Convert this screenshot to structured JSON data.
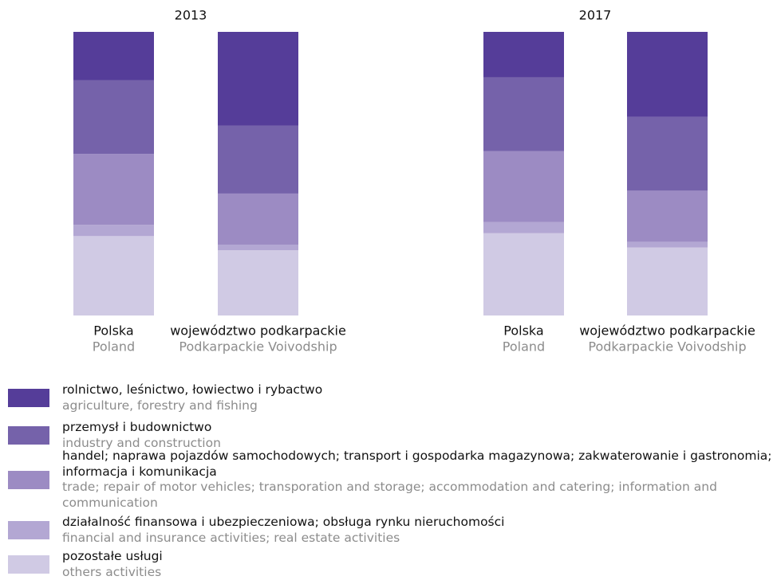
{
  "chart_data": {
    "type": "bar",
    "stacked": true,
    "ylim": [
      0,
      100
    ],
    "groups": [
      "2013",
      "2017"
    ],
    "categories": [
      [
        "Polska",
        "Poland"
      ],
      [
        "województwo podkarpackie",
        "Podkarpackie Voivodship"
      ],
      [
        "Polska",
        "Poland"
      ],
      [
        "województwo podkarpackie",
        "Podkarpackie Voivodship"
      ]
    ],
    "series": [
      {
        "name": "rolnictwo, leśnictwo, łowiectwo i rybactwo",
        "name_en": "agriculture, forestry and fishing",
        "color": "#553d99",
        "values": [
          17,
          33,
          16,
          30
        ]
      },
      {
        "name": "przemysł i budownictwo",
        "name_en": "industry and construction",
        "color": "#7562aa",
        "values": [
          26,
          24,
          26,
          26
        ]
      },
      {
        "name": "handel; naprawa pojazdów samochodowych; transport i gospodarka magazynowa; zakwaterowanie i gastronomia; informacja i komunikacja",
        "name_en": "trade; repair of motor vehicles; transporation and storage; accommodation and catering; information and communication",
        "color": "#9c8bc3",
        "values": [
          25,
          18,
          25,
          18
        ]
      },
      {
        "name": "działalność finansowa i ubezpieczeniowa; obsługa rynku nieruchomości",
        "name_en": "financial and insurance activities; real estate activities",
        "color": "#b3a7d3",
        "values": [
          4,
          2,
          4,
          2
        ]
      },
      {
        "name": "pozostałe usługi",
        "name_en": "others activities",
        "color": "#d0cae4",
        "values": [
          28,
          23,
          29,
          24
        ]
      }
    ]
  }
}
